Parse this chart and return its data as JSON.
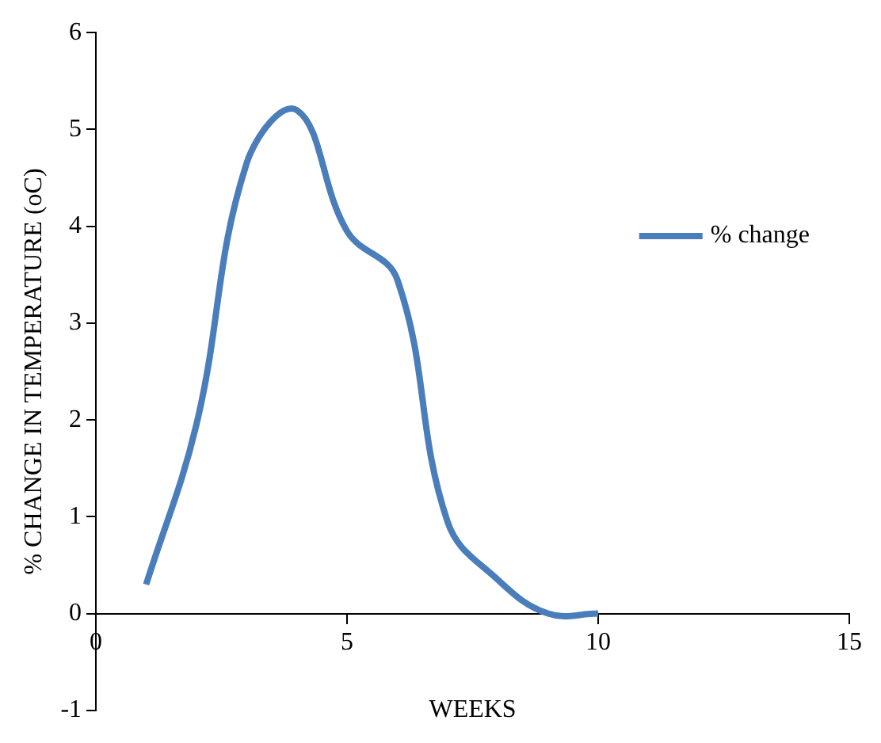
{
  "chart_data": {
    "type": "line",
    "xlabel": "WEEKS",
    "ylabel": "% CHANGE IN TEMPERATURE (oC)",
    "xlim": [
      0,
      15
    ],
    "xticks": [
      0,
      5,
      10,
      15
    ],
    "ylim": [
      -1,
      6
    ],
    "yticks": [
      -1,
      0,
      1,
      2,
      3,
      4,
      5,
      6
    ],
    "grid": false,
    "legend": "right",
    "marker": "none",
    "line_style": "solid",
    "series": [
      {
        "name": "% change",
        "color": "#4a7ebb",
        "x": [
          1,
          2,
          3,
          4,
          5,
          6,
          7,
          8,
          9,
          10
        ],
        "values": [
          0.3,
          1.95,
          4.65,
          5.2,
          3.95,
          3.45,
          0.95,
          0.35,
          0,
          0
        ]
      }
    ]
  }
}
